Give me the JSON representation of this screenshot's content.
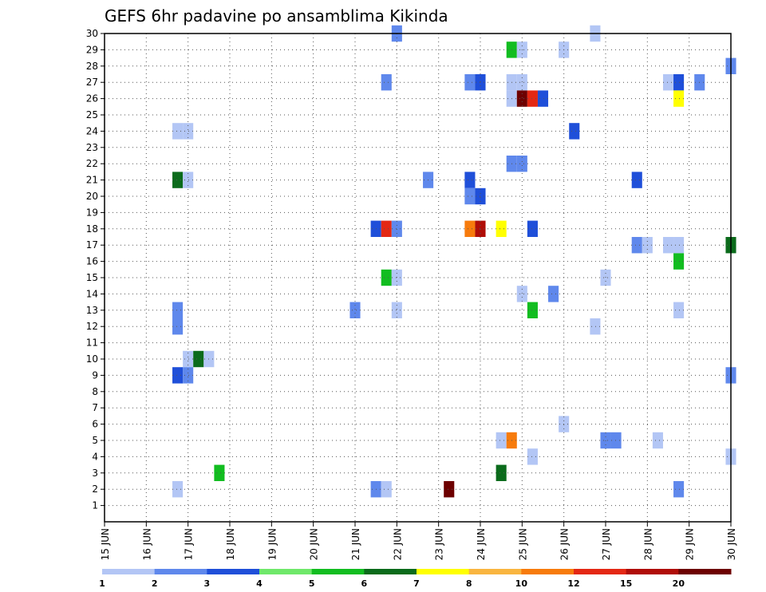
{
  "chart_data": {
    "type": "heatmap",
    "title": "GEFS 6hr padavine po ansamblima Kikinda",
    "xlabel": "",
    "ylabel": "",
    "x_tick_labels": [
      "15 JUN",
      "16 JUN",
      "17 JUN",
      "18 JUN",
      "19 JUN",
      "20 JUN",
      "21 JUN",
      "22 JUN",
      "23 JUN",
      "24 JUN",
      "25 JUN",
      "26 JUN",
      "27 JUN",
      "28 JUN",
      "29 JUN",
      "30 JUN"
    ],
    "x_range_days": [
      15,
      30
    ],
    "y_tick_labels": [
      "1",
      "2",
      "3",
      "4",
      "5",
      "6",
      "7",
      "8",
      "9",
      "10",
      "11",
      "12",
      "13",
      "14",
      "15",
      "16",
      "17",
      "18",
      "19",
      "20",
      "21",
      "22",
      "23",
      "24",
      "25",
      "26",
      "27",
      "28",
      "29",
      "30"
    ],
    "y_range": [
      0,
      30
    ],
    "grid": true,
    "legend_placement": "bottom",
    "legend": {
      "labels": [
        "1",
        "2",
        "3",
        "4",
        "5",
        "6",
        "7",
        "8",
        "10",
        "12",
        "15",
        "20"
      ],
      "colors": [
        "#b3c6f5",
        "#5f88ec",
        "#1f4fd9",
        "#6fe86a",
        "#12bd20",
        "#0b6b1b",
        "#ffff00",
        "#f9b540",
        "#f77b0c",
        "#e42814",
        "#b00d08",
        "#6d0000"
      ]
    },
    "cells": [
      {
        "member": 30,
        "day": 22.0,
        "value": 2
      },
      {
        "member": 30,
        "day": 26.75,
        "value": 1
      },
      {
        "member": 29,
        "day": 24.75,
        "value": 5
      },
      {
        "member": 29,
        "day": 25.0,
        "value": 1
      },
      {
        "member": 29,
        "day": 26.0,
        "value": 1
      },
      {
        "member": 28,
        "day": 30.0,
        "value": 2
      },
      {
        "member": 27,
        "day": 21.75,
        "value": 2
      },
      {
        "member": 27,
        "day": 23.75,
        "value": 2
      },
      {
        "member": 27,
        "day": 24.0,
        "value": 3
      },
      {
        "member": 27,
        "day": 24.75,
        "value": 1
      },
      {
        "member": 27,
        "day": 25.0,
        "value": 1
      },
      {
        "member": 27,
        "day": 28.5,
        "value": 1
      },
      {
        "member": 27,
        "day": 28.75,
        "value": 3
      },
      {
        "member": 27,
        "day": 29.25,
        "value": 2
      },
      {
        "member": 26,
        "day": 24.75,
        "value": 1
      },
      {
        "member": 26,
        "day": 25.0,
        "value": 20
      },
      {
        "member": 26,
        "day": 25.25,
        "value": 12
      },
      {
        "member": 26,
        "day": 25.5,
        "value": 3
      },
      {
        "member": 26,
        "day": 28.75,
        "value": 7
      },
      {
        "member": 24,
        "day": 16.75,
        "value": 1
      },
      {
        "member": 24,
        "day": 17.0,
        "value": 1
      },
      {
        "member": 24,
        "day": 26.25,
        "value": 3
      },
      {
        "member": 22,
        "day": 24.75,
        "value": 2
      },
      {
        "member": 22,
        "day": 25.0,
        "value": 2
      },
      {
        "member": 21,
        "day": 16.75,
        "value": 6
      },
      {
        "member": 21,
        "day": 17.0,
        "value": 1
      },
      {
        "member": 21,
        "day": 22.75,
        "value": 2
      },
      {
        "member": 21,
        "day": 23.75,
        "value": 3
      },
      {
        "member": 21,
        "day": 27.75,
        "value": 3
      },
      {
        "member": 20,
        "day": 23.75,
        "value": 2
      },
      {
        "member": 20,
        "day": 24.0,
        "value": 3
      },
      {
        "member": 18,
        "day": 21.5,
        "value": 3
      },
      {
        "member": 18,
        "day": 21.75,
        "value": 12
      },
      {
        "member": 18,
        "day": 22.0,
        "value": 2
      },
      {
        "member": 18,
        "day": 23.75,
        "value": 10
      },
      {
        "member": 18,
        "day": 24.0,
        "value": 15
      },
      {
        "member": 18,
        "day": 24.5,
        "value": 7
      },
      {
        "member": 18,
        "day": 25.25,
        "value": 3
      },
      {
        "member": 17,
        "day": 27.75,
        "value": 2
      },
      {
        "member": 17,
        "day": 28.0,
        "value": 1
      },
      {
        "member": 17,
        "day": 28.5,
        "value": 1
      },
      {
        "member": 17,
        "day": 28.75,
        "value": 1
      },
      {
        "member": 17,
        "day": 30.0,
        "value": 6
      },
      {
        "member": 16,
        "day": 28.75,
        "value": 5
      },
      {
        "member": 15,
        "day": 21.75,
        "value": 5
      },
      {
        "member": 15,
        "day": 22.0,
        "value": 1
      },
      {
        "member": 15,
        "day": 27.0,
        "value": 1
      },
      {
        "member": 14,
        "day": 25.0,
        "value": 1
      },
      {
        "member": 14,
        "day": 25.75,
        "value": 2
      },
      {
        "member": 13,
        "day": 16.75,
        "value": 2
      },
      {
        "member": 13,
        "day": 21.0,
        "value": 2
      },
      {
        "member": 13,
        "day": 22.0,
        "value": 1
      },
      {
        "member": 13,
        "day": 25.25,
        "value": 5
      },
      {
        "member": 13,
        "day": 28.75,
        "value": 1
      },
      {
        "member": 12,
        "day": 16.75,
        "value": 2
      },
      {
        "member": 12,
        "day": 26.75,
        "value": 1
      },
      {
        "member": 10,
        "day": 17.0,
        "value": 1
      },
      {
        "member": 10,
        "day": 17.25,
        "value": 6
      },
      {
        "member": 10,
        "day": 17.5,
        "value": 1
      },
      {
        "member": 9,
        "day": 16.75,
        "value": 3
      },
      {
        "member": 9,
        "day": 17.0,
        "value": 2
      },
      {
        "member": 9,
        "day": 30.0,
        "value": 2
      },
      {
        "member": 6,
        "day": 26.0,
        "value": 1
      },
      {
        "member": 5,
        "day": 24.5,
        "value": 1
      },
      {
        "member": 5,
        "day": 24.75,
        "value": 10
      },
      {
        "member": 5,
        "day": 27.0,
        "value": 2
      },
      {
        "member": 5,
        "day": 27.25,
        "value": 2
      },
      {
        "member": 5,
        "day": 28.25,
        "value": 1
      },
      {
        "member": 4,
        "day": 25.25,
        "value": 1
      },
      {
        "member": 4,
        "day": 30.0,
        "value": 1
      },
      {
        "member": 3,
        "day": 17.75,
        "value": 5
      },
      {
        "member": 3,
        "day": 24.5,
        "value": 6
      },
      {
        "member": 2,
        "day": 16.75,
        "value": 1
      },
      {
        "member": 2,
        "day": 21.5,
        "value": 2
      },
      {
        "member": 2,
        "day": 21.75,
        "value": 1
      },
      {
        "member": 2,
        "day": 23.25,
        "value": 20
      },
      {
        "member": 2,
        "day": 28.75,
        "value": 2
      }
    ]
  }
}
